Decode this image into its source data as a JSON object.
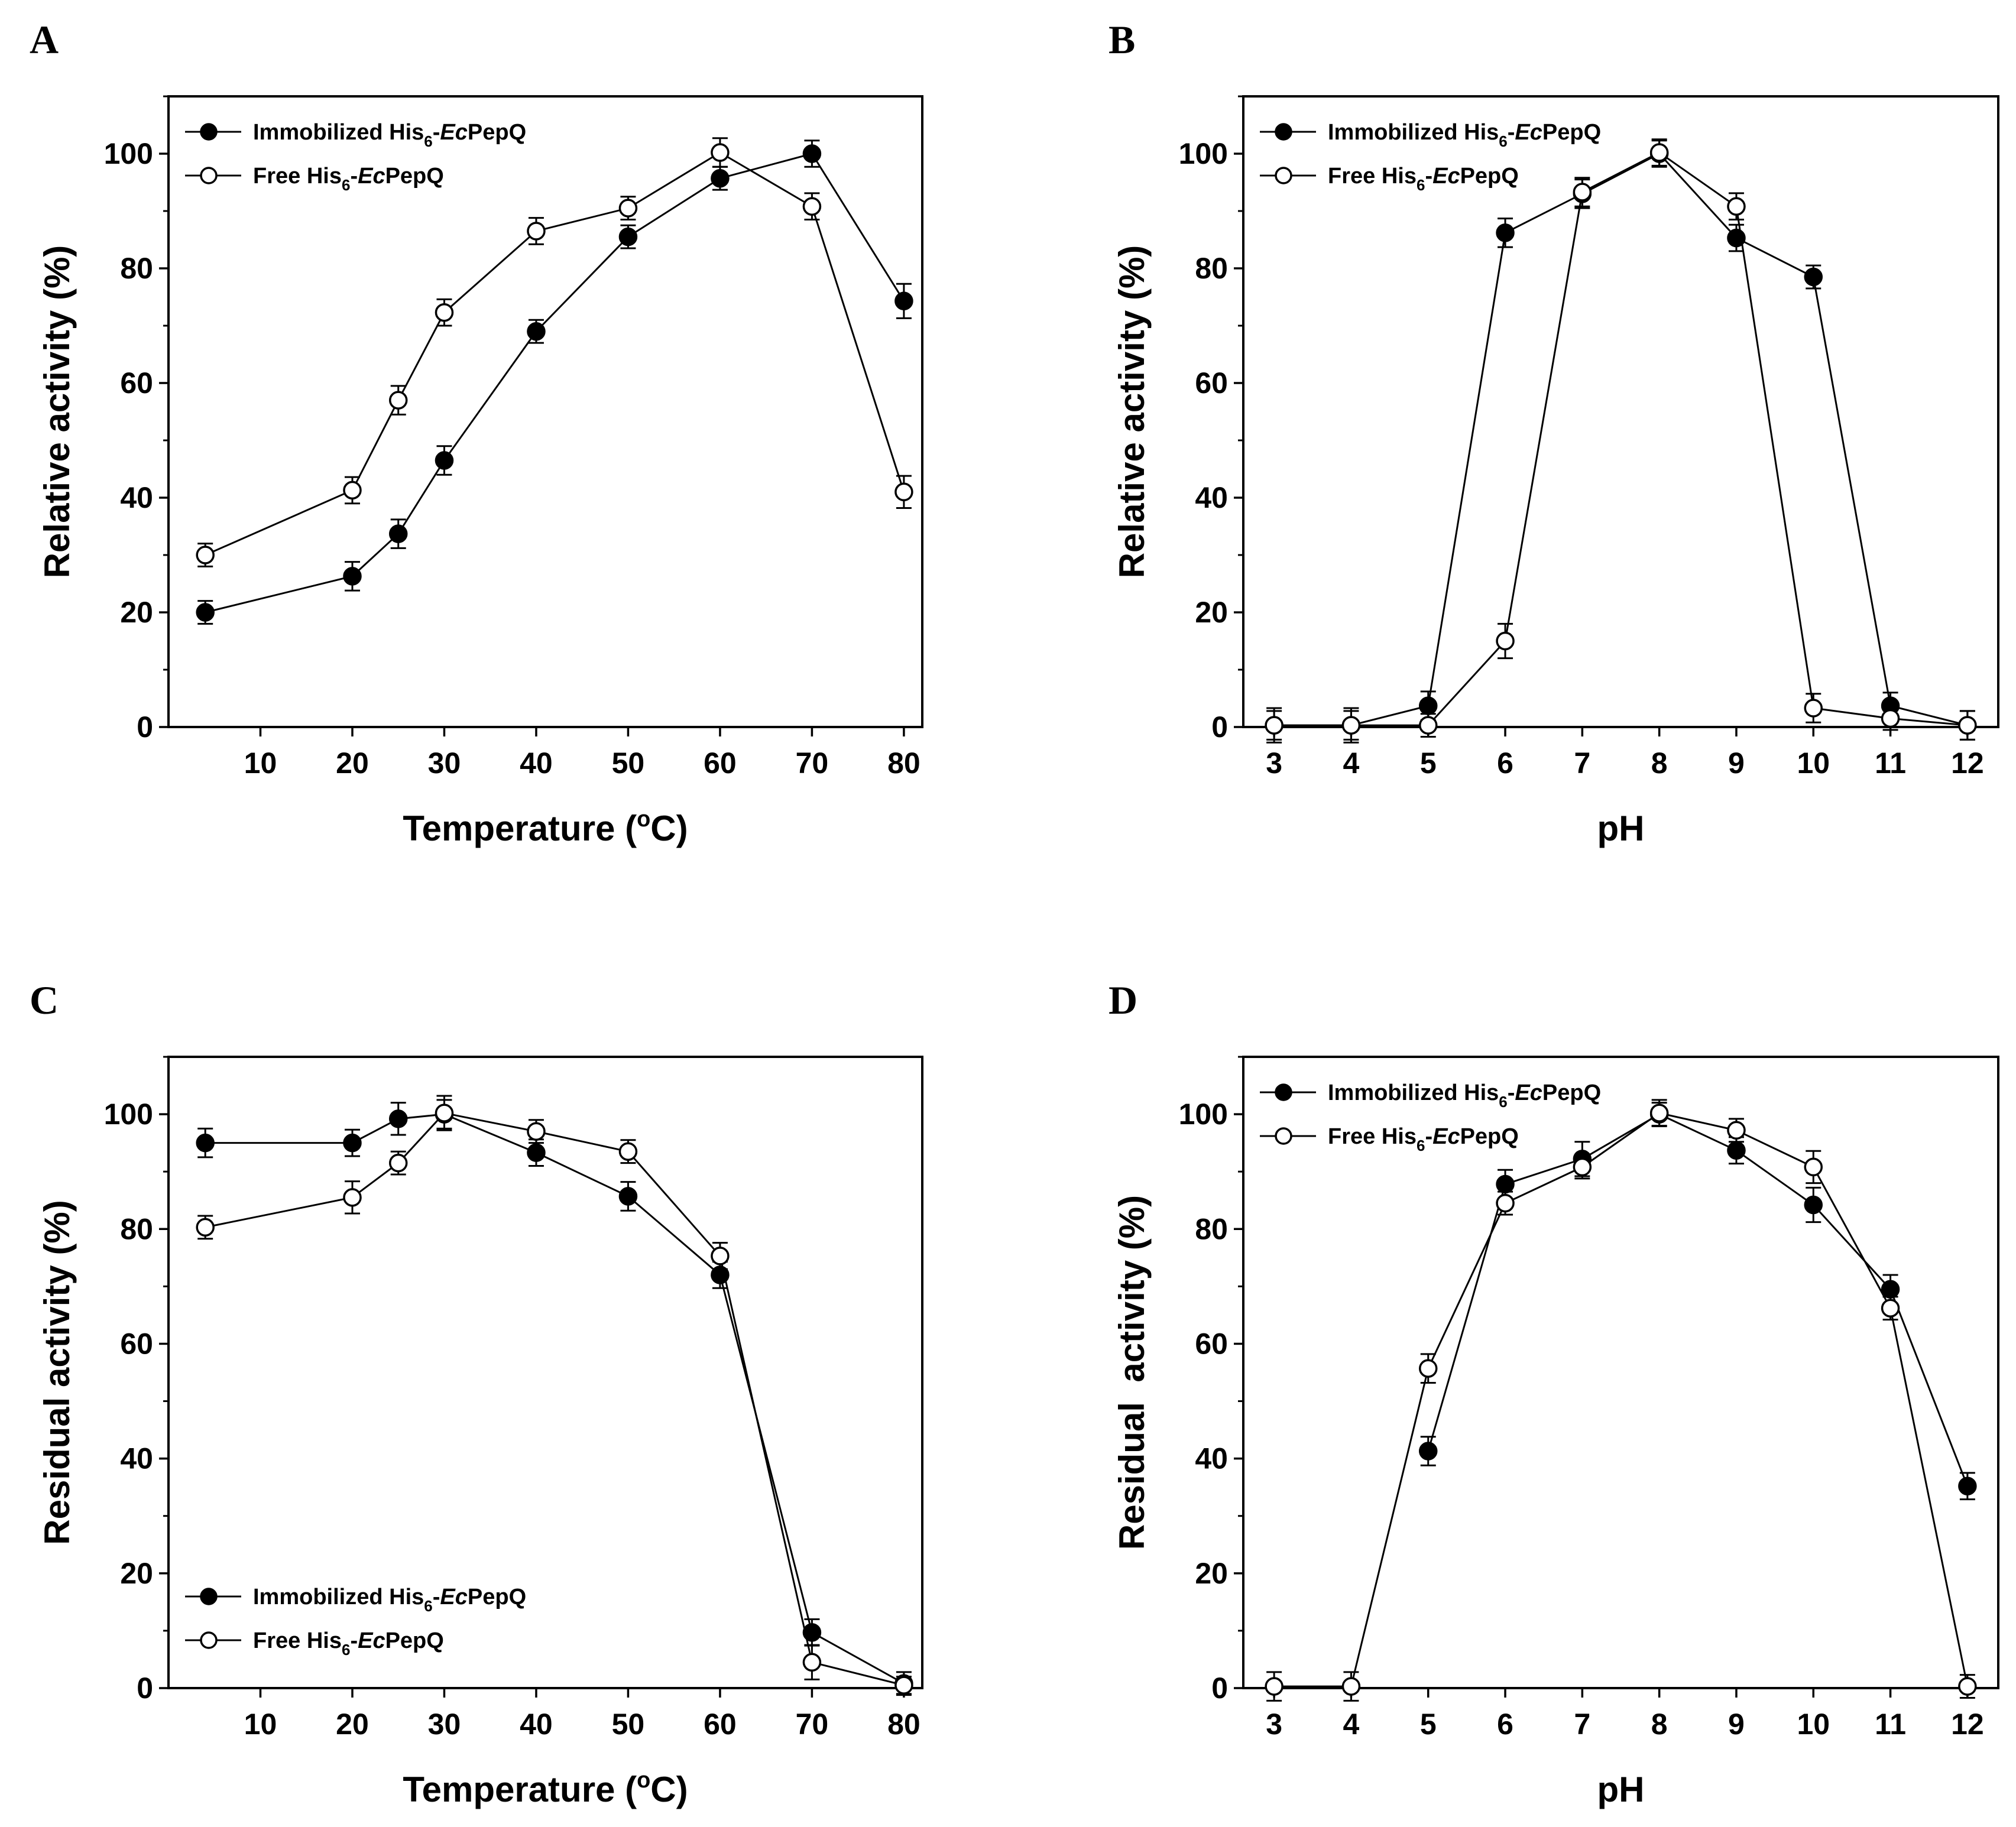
{
  "chart_data": [
    {
      "type": "line",
      "panel": "A",
      "xlabel": "Temperature (oC)",
      "xlabel_main": "Temperature (",
      "xlabel_sup": "o",
      "xlabel_tail": "C)",
      "ylabel": "Relative activity (%)",
      "xlim": [
        0,
        82
      ],
      "ylim": [
        0,
        110
      ],
      "xticks": [
        10,
        20,
        30,
        40,
        50,
        60,
        70,
        80
      ],
      "xtick_labels": [
        "10",
        "20",
        "30",
        "40",
        "50",
        "60",
        "70",
        "80"
      ],
      "yticks": [
        0,
        20,
        40,
        60,
        80,
        100
      ],
      "ytick_labels": [
        "0",
        "20",
        "40",
        "60",
        "80",
        "100"
      ],
      "yminor": true,
      "legend_position": "top-left",
      "series": [
        {
          "name": "Immobilized His6-EcPepQ",
          "name_prefix": "Immobilized His",
          "name_sub": "6",
          "name_italic": "Ec",
          "name_suffix": "PepQ",
          "marker": "filled-circle",
          "x": [
            4,
            20,
            25,
            30,
            40,
            50,
            60,
            70,
            80
          ],
          "y": [
            20,
            26.3,
            33.7,
            46.5,
            69,
            85.5,
            95.7,
            100,
            74.3
          ],
          "err": [
            2,
            2.5,
            2.5,
            2.5,
            2,
            2,
            2,
            2.3,
            3
          ]
        },
        {
          "name": "Free His6-EcPepQ",
          "name_prefix": "Free His",
          "name_sub": "6",
          "name_italic": "Ec",
          "name_suffix": "PepQ",
          "marker": "open-circle",
          "x": [
            4,
            20,
            25,
            30,
            40,
            50,
            60,
            70,
            80
          ],
          "y": [
            30,
            41.3,
            57,
            72.3,
            86.5,
            90.5,
            100.2,
            90.8,
            41
          ],
          "err": [
            2,
            2.3,
            2.5,
            2.3,
            2.3,
            2,
            2.5,
            2.3,
            2.8
          ]
        }
      ]
    },
    {
      "type": "line",
      "panel": "B",
      "xlabel": "pH",
      "xlabel_main": "pH",
      "xlabel_sup": "",
      "xlabel_tail": "",
      "ylabel": "Relative activity (%)",
      "xlim": [
        2.6,
        12.4
      ],
      "ylim": [
        0,
        110
      ],
      "xticks": [
        3,
        4,
        5,
        6,
        7,
        8,
        9,
        10,
        11,
        12
      ],
      "xtick_labels": [
        "3",
        "4",
        "5",
        "6",
        "7",
        "8",
        "9",
        "10",
        "11",
        "12"
      ],
      "yticks": [
        0,
        20,
        40,
        60,
        80,
        100
      ],
      "ytick_labels": [
        "0",
        "20",
        "40",
        "60",
        "80",
        "100"
      ],
      "yminor": true,
      "legend_position": "top-left",
      "series": [
        {
          "name": "Immobilized His6-EcPepQ",
          "name_prefix": "Immobilized His",
          "name_sub": "6",
          "name_italic": "Ec",
          "name_suffix": "PepQ",
          "marker": "filled-circle",
          "x": [
            3,
            4,
            5,
            6,
            7,
            8,
            9,
            10,
            11,
            12
          ],
          "y": [
            0.3,
            0.3,
            3.7,
            86.2,
            93,
            100,
            85.3,
            78.5,
            3.7,
            0.3
          ],
          "err": [
            3,
            3,
            2.5,
            2.5,
            2.5,
            2.3,
            2.3,
            2,
            2.3,
            2.5
          ]
        },
        {
          "name": "Free His6-EcPepQ",
          "name_prefix": "Free His",
          "name_sub": "6",
          "name_italic": "Ec",
          "name_suffix": "PepQ",
          "marker": "open-circle",
          "x": [
            3,
            4,
            5,
            6,
            7,
            8,
            9,
            10,
            11,
            12
          ],
          "y": [
            0.3,
            0.3,
            0.3,
            15,
            93.3,
            100.2,
            90.8,
            3.3,
            1.5,
            0.3
          ],
          "err": [
            2.5,
            2.5,
            2,
            3,
            2.5,
            2.3,
            2.3,
            2.5,
            2,
            2.5
          ]
        }
      ]
    },
    {
      "type": "line",
      "panel": "C",
      "xlabel": "Temperature (oC)",
      "xlabel_main": "Temperature (",
      "xlabel_sup": "o",
      "xlabel_tail": "C)",
      "ylabel": "Residual activity (%)",
      "xlim": [
        0,
        82
      ],
      "ylim": [
        0,
        110
      ],
      "xticks": [
        10,
        20,
        30,
        40,
        50,
        60,
        70,
        80
      ],
      "xtick_labels": [
        "10",
        "20",
        "30",
        "40",
        "50",
        "60",
        "70",
        "80"
      ],
      "yticks": [
        0,
        20,
        40,
        60,
        80,
        100
      ],
      "ytick_labels": [
        "0",
        "20",
        "40",
        "60",
        "80",
        "100"
      ],
      "yminor": true,
      "legend_position": "bottom-left",
      "series": [
        {
          "name": "Immobilized His6-EcPepQ",
          "name_prefix": "Immobilized His",
          "name_sub": "6",
          "name_italic": "Ec",
          "name_suffix": "PepQ",
          "marker": "filled-circle",
          "x": [
            4,
            20,
            25,
            30,
            40,
            50,
            60,
            70,
            80
          ],
          "y": [
            95,
            95,
            99.2,
            100,
            93.3,
            85.7,
            72,
            9.7,
            0.8
          ],
          "err": [
            2.5,
            2.3,
            2.8,
            2.5,
            2.3,
            2.5,
            2.3,
            2.3,
            2
          ]
        },
        {
          "name": "Free His6-EcPepQ",
          "name_prefix": "Free His",
          "name_sub": "6",
          "name_italic": "Ec",
          "name_suffix": "PepQ",
          "marker": "open-circle",
          "x": [
            4,
            20,
            25,
            30,
            40,
            50,
            60,
            70,
            80
          ],
          "y": [
            80.3,
            85.5,
            91.5,
            100.2,
            97,
            93.5,
            75.3,
            4.5,
            0.5
          ],
          "err": [
            2,
            2.8,
            2,
            3,
            2,
            2,
            2.3,
            3,
            1.5
          ]
        }
      ]
    },
    {
      "type": "line",
      "panel": "D",
      "xlabel": "pH",
      "xlabel_main": "pH",
      "xlabel_sup": "",
      "xlabel_tail": "",
      "ylabel": "Residual  activity (%)",
      "xlim": [
        2.6,
        12.4
      ],
      "ylim": [
        0,
        110
      ],
      "xticks": [
        3,
        4,
        5,
        6,
        7,
        8,
        9,
        10,
        11,
        12
      ],
      "xtick_labels": [
        "3",
        "4",
        "5",
        "6",
        "7",
        "8",
        "9",
        "10",
        "11",
        "12"
      ],
      "yticks": [
        0,
        20,
        40,
        60,
        80,
        100
      ],
      "ytick_labels": [
        "0",
        "20",
        "40",
        "60",
        "80",
        "100"
      ],
      "yminor": true,
      "legend_position": "top-left",
      "series": [
        {
          "name": "Immobilized His6-EcPepQ",
          "name_prefix": "Immobilized His",
          "name_sub": "6",
          "name_italic": "Ec",
          "name_suffix": "PepQ",
          "marker": "filled-circle",
          "x": [
            5,
            6,
            7,
            8,
            9,
            10,
            11,
            12
          ],
          "y": [
            41.3,
            87.8,
            92.2,
            100,
            93.7,
            84.2,
            69.5,
            35.2
          ],
          "err": [
            2.5,
            2.5,
            3,
            2,
            2.3,
            3,
            2.5,
            2.3
          ]
        },
        {
          "name": "Free His6-EcPepQ",
          "name_prefix": "Free His",
          "name_sub": "6",
          "name_italic": "Ec",
          "name_suffix": "PepQ",
          "marker": "open-circle",
          "x": [
            3,
            4,
            5,
            6,
            7,
            8,
            9,
            10,
            11,
            12
          ],
          "y": [
            0.3,
            0.3,
            55.7,
            84.5,
            90.8,
            100.2,
            97.2,
            90.8,
            66.2,
            0.3
          ],
          "err": [
            2.5,
            2.5,
            2.5,
            2,
            2,
            2.3,
            2,
            2.8,
            2,
            2
          ]
        }
      ]
    }
  ]
}
